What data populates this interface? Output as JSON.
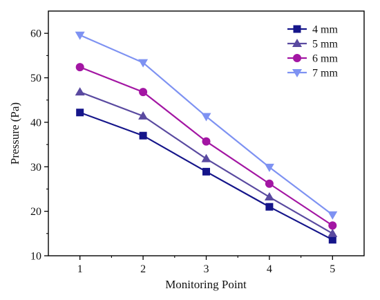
{
  "chart_data": {
    "type": "line",
    "title": "",
    "xlabel": "Monitoring Point",
    "ylabel": "Pressure (Pa)",
    "x": [
      1,
      2,
      3,
      4,
      5
    ],
    "xlim": [
      0.5,
      5.5
    ],
    "ylim": [
      10,
      65
    ],
    "xticks": [
      "1",
      "2",
      "3",
      "4",
      "5"
    ],
    "yticks": [
      "10",
      "20",
      "30",
      "40",
      "50",
      "60"
    ],
    "grid": false,
    "legend_position": "top-right",
    "series": [
      {
        "name": "4 mm",
        "marker": "square",
        "color": "#15158a",
        "values": [
          42.2,
          37.0,
          28.9,
          21.0,
          13.6
        ]
      },
      {
        "name": "5 mm",
        "marker": "triangle-up",
        "color": "#5a4aa0",
        "values": [
          46.8,
          41.4,
          31.8,
          23.2,
          15.0
        ]
      },
      {
        "name": "6 mm",
        "marker": "circle",
        "color": "#a316a3",
        "values": [
          52.4,
          46.8,
          35.7,
          26.2,
          16.8
        ]
      },
      {
        "name": "7 mm",
        "marker": "triangle-down",
        "color": "#7e92f2",
        "values": [
          59.6,
          53.4,
          41.3,
          29.9,
          19.2
        ]
      }
    ]
  }
}
